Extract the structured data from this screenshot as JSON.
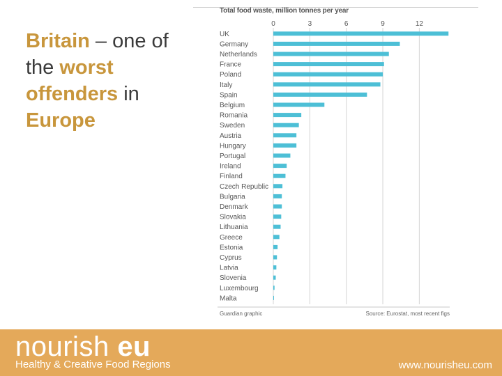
{
  "headline": {
    "part1": "Britain",
    "part2": " – one of the ",
    "part3": "worst offenders",
    "part4": " in ",
    "part5": "Europe"
  },
  "chart_data": {
    "type": "bar",
    "orientation": "horizontal",
    "title": "Total food waste, million tonnes per year",
    "categories": [
      "UK",
      "Germany",
      "Netherlands",
      "France",
      "Poland",
      "Italy",
      "Spain",
      "Belgium",
      "Romania",
      "Sweden",
      "Austria",
      "Hungary",
      "Portugal",
      "Ireland",
      "Finland",
      "Czech Republic",
      "Bulgaria",
      "Denmark",
      "Slovakia",
      "Lithuania",
      "Greece",
      "Estonia",
      "Cyprus",
      "Latvia",
      "Slovenia",
      "Luxembourg",
      "Malta"
    ],
    "values": [
      14.4,
      10.4,
      9.5,
      9.1,
      9.0,
      8.8,
      7.7,
      4.2,
      2.3,
      2.1,
      1.9,
      1.9,
      1.4,
      1.1,
      1.0,
      0.75,
      0.7,
      0.7,
      0.65,
      0.6,
      0.5,
      0.35,
      0.3,
      0.25,
      0.2,
      0.1,
      0.05
    ],
    "x_ticks": [
      0,
      3,
      6,
      9,
      12
    ],
    "xlim": [
      0,
      14.5
    ],
    "bar_color": "#4dbfd6",
    "grid": true,
    "source_left": "Guardian graphic",
    "source_right": "Source: Eurostat, most recent figs"
  },
  "brand": {
    "name_light": "nourish ",
    "name_bold": "eu",
    "tagline": "Healthy & Creative Food Regions",
    "website": "www.nourisheu.com"
  }
}
